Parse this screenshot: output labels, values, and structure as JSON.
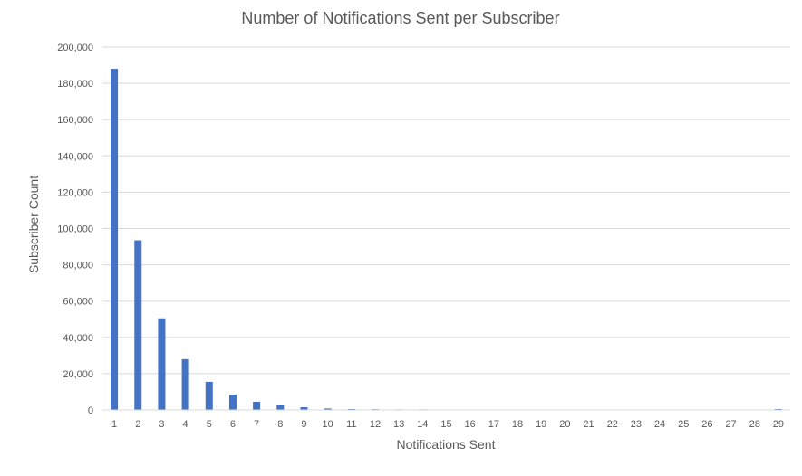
{
  "chart_data": {
    "type": "bar",
    "title": "Number of Notifications Sent per Subscriber",
    "xlabel": "Notifications Sent",
    "ylabel": "Subscriber Count",
    "ylim": [
      0,
      200000
    ],
    "yticks": [
      "0",
      "20,000",
      "40,000",
      "60,000",
      "80,000",
      "100,000",
      "120,000",
      "140,000",
      "160,000",
      "180,000",
      "200,000"
    ],
    "categories": [
      "1",
      "2",
      "3",
      "4",
      "5",
      "6",
      "7",
      "8",
      "9",
      "10",
      "11",
      "12",
      "13",
      "14",
      "15",
      "16",
      "17",
      "18",
      "19",
      "20",
      "21",
      "22",
      "23",
      "24",
      "25",
      "26",
      "27",
      "28",
      "29"
    ],
    "values": [
      188000,
      93500,
      50500,
      28000,
      15500,
      8500,
      4500,
      2500,
      1500,
      800,
      500,
      400,
      300,
      300,
      200,
      200,
      200,
      150,
      150,
      150,
      100,
      100,
      100,
      100,
      100,
      100,
      0,
      0,
      500
    ],
    "grid": true,
    "bar_color": "#4472c4",
    "grid_color": "#d9d9d9",
    "text_color": "#595959"
  }
}
